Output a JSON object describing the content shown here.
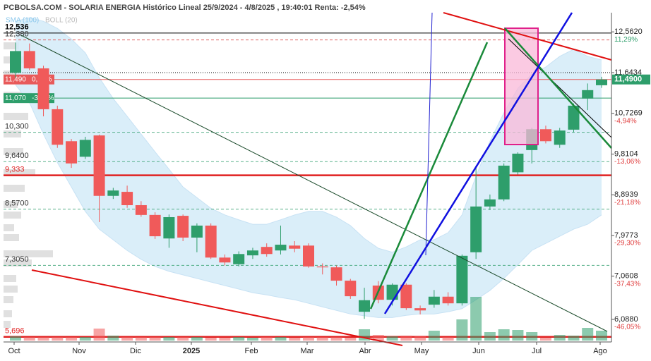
{
  "chart_data": {
    "type": "candlestick",
    "title": "PCBOLSA.COM - SOLARIA ENERGIA Histórico Lineal 25/9/2024 - 4/8/2025 , 19:40:01 Renta: -2,54%",
    "legend": [
      "SMA (100)",
      "BOLL (20)"
    ],
    "x_labels": [
      "Oct",
      "Nov",
      "Dic",
      "2025",
      "Feb",
      "Mar",
      "Abr",
      "May",
      "Jun",
      "Jul",
      "Ago"
    ],
    "ylim": [
      5.58,
      12.93
    ],
    "yticks": [
      {
        "value": 12.562,
        "label": "12,5620"
      },
      {
        "value": 11.6434,
        "label": "11,6434"
      },
      {
        "value": 10.7269,
        "label": "10,7269"
      },
      {
        "value": 9.8104,
        "label": "9,8104"
      },
      {
        "value": 8.8939,
        "label": "8,8939"
      },
      {
        "value": 7.9773,
        "label": "7,9773"
      },
      {
        "value": 7.0608,
        "label": "7,0608"
      },
      {
        "value": 6.088,
        "label": "6,0880"
      }
    ],
    "percent_labels": [
      {
        "value": 11.29,
        "label": "11,29%"
      },
      {
        "value": -4.94,
        "label": "-4,94%"
      },
      {
        "value": -13.06,
        "label": "-13,06%"
      },
      {
        "value": -21.18,
        "label": "-21,18%"
      },
      {
        "value": -29.3,
        "label": "-29,30%"
      },
      {
        "value": -37.43,
        "label": "-37,43%"
      },
      {
        "value": -46.05,
        "label": "-46,05%"
      }
    ],
    "last_price": {
      "value": 11.49,
      "label": "11,4900"
    },
    "levels": [
      {
        "value": 12.536,
        "label": "12,536",
        "color": "#000000",
        "style": "solid"
      },
      {
        "value": 12.38,
        "label": "12,380",
        "color": "#e06060",
        "style": "dashed"
      },
      {
        "value": 11.6434,
        "color": "#000000",
        "style": "dotted"
      },
      {
        "value": 11.49,
        "label": "11,490",
        "pct": "0,00%",
        "color": "#e85a5a",
        "style": "box"
      },
      {
        "value": 11.07,
        "label": "11,070",
        "pct": "-3,65%",
        "color": "#2e9e6b",
        "style": "box"
      },
      {
        "value": 10.3,
        "label": "10,300",
        "color": "#2e9e6b",
        "style": "dashed"
      },
      {
        "value": 9.64,
        "label": "9,6400",
        "color": "#2e9e6b",
        "style": "dashed"
      },
      {
        "value": 9.333,
        "label": "9,333",
        "color": "#e02020",
        "style": "thick"
      },
      {
        "value": 8.57,
        "label": "8,5700",
        "color": "#2e9e6b",
        "style": "dashed"
      },
      {
        "value": 7.305,
        "label": "7,3050",
        "color": "#2e9e6b",
        "style": "dashed"
      },
      {
        "value": 5.696,
        "label": "5,696",
        "color": "#e02020",
        "style": "thick"
      }
    ],
    "up_color": "#2e9e6b",
    "down_color": "#f05a5a",
    "open": [
      11.64,
      12.13,
      11.74,
      10.82,
      10.1,
      9.75,
      10.23,
      8.87,
      8.96,
      8.66,
      8.44,
      7.91,
      8.42,
      7.93,
      8.2,
      7.48,
      7.33,
      7.53,
      7.72,
      7.64,
      7.75,
      7.75,
      7.28,
      7.26,
      6.96,
      6.26,
      6.85,
      6.53,
      6.87,
      6.34,
      6.42,
      6.6,
      6.45,
      7.6,
      8.63,
      8.79,
      9.4,
      9.9,
      10.37,
      10.02,
      10.36,
      11.06,
      11.36
    ],
    "high": [
      12.32,
      12.3,
      11.8,
      10.9,
      10.15,
      10.2,
      10.25,
      9.05,
      9.1,
      8.75,
      8.5,
      8.45,
      8.45,
      8.25,
      8.25,
      7.55,
      7.62,
      7.7,
      7.8,
      8.2,
      7.85,
      7.8,
      7.35,
      7.3,
      7.0,
      6.8,
      6.95,
      6.9,
      6.9,
      6.4,
      6.75,
      6.7,
      7.55,
      9.55,
      8.9,
      9.6,
      9.85,
      10.4,
      10.45,
      10.4,
      10.95,
      11.4,
      11.55
    ],
    "low": [
      11.53,
      11.7,
      10.66,
      9.95,
      9.5,
      9.7,
      8.28,
      8.8,
      8.6,
      8.4,
      7.9,
      7.7,
      7.85,
      7.6,
      7.45,
      7.3,
      7.28,
      7.45,
      7.5,
      7.55,
      7.6,
      7.25,
      7.1,
      6.85,
      6.55,
      6.1,
      6.45,
      6.4,
      6.3,
      6.2,
      6.35,
      6.4,
      6.4,
      7.45,
      8.55,
      8.75,
      9.35,
      9.6,
      10.05,
      9.95,
      10.3,
      10.8,
      11.3
    ],
    "close": [
      12.13,
      11.74,
      10.82,
      10.02,
      9.6,
      10.13,
      8.87,
      8.99,
      8.66,
      8.44,
      7.96,
      8.39,
      7.93,
      8.2,
      7.48,
      7.37,
      7.56,
      7.64,
      7.56,
      7.77,
      7.68,
      7.28,
      7.26,
      6.96,
      6.61,
      6.52,
      6.53,
      6.87,
      6.34,
      6.29,
      6.6,
      6.45,
      7.52,
      8.63,
      8.79,
      9.55,
      9.82,
      10.37,
      10.1,
      10.34,
      10.9,
      11.25,
      11.49
    ],
    "volume": [
      6,
      5,
      5,
      5,
      5,
      5,
      17,
      7,
      5,
      5,
      5,
      5,
      5,
      5,
      4,
      4,
      5,
      4,
      5,
      5,
      4,
      5,
      5,
      5,
      4,
      16,
      8,
      6,
      7,
      6,
      14,
      5,
      30,
      62,
      12,
      16,
      15,
      12,
      4,
      8,
      7,
      18,
      14
    ],
    "boll_upper": [
      12.8,
      12.88,
      12.8,
      12.64,
      12.4,
      12.09,
      11.53,
      11.06,
      10.66,
      10.26,
      9.86,
      9.47,
      9.07,
      8.83,
      8.59,
      8.44,
      8.33,
      8.23,
      8.23,
      8.33,
      8.44,
      8.52,
      8.52,
      8.39,
      8.2,
      7.91,
      7.69,
      7.6,
      7.72,
      7.88,
      7.88,
      8.04,
      8.44,
      9.31,
      10.1,
      10.74,
      11.29,
      11.61,
      11.77,
      12.01,
      12.17,
      12.01,
      11.93
    ],
    "boll_lower": [
      11.37,
      10.97,
      10.26,
      9.62,
      9.07,
      8.52,
      8.12,
      7.88,
      7.64,
      7.44,
      7.28,
      7.17,
      7.09,
      7.01,
      6.93,
      6.85,
      6.77,
      6.69,
      6.64,
      6.58,
      6.53,
      6.45,
      6.37,
      6.29,
      6.21,
      6.17,
      6.13,
      6.13,
      6.18,
      6.21,
      6.21,
      6.26,
      6.33,
      6.53,
      6.74,
      7.01,
      7.32,
      7.64,
      7.8,
      7.96,
      8.12,
      8.23,
      8.44
    ]
  }
}
